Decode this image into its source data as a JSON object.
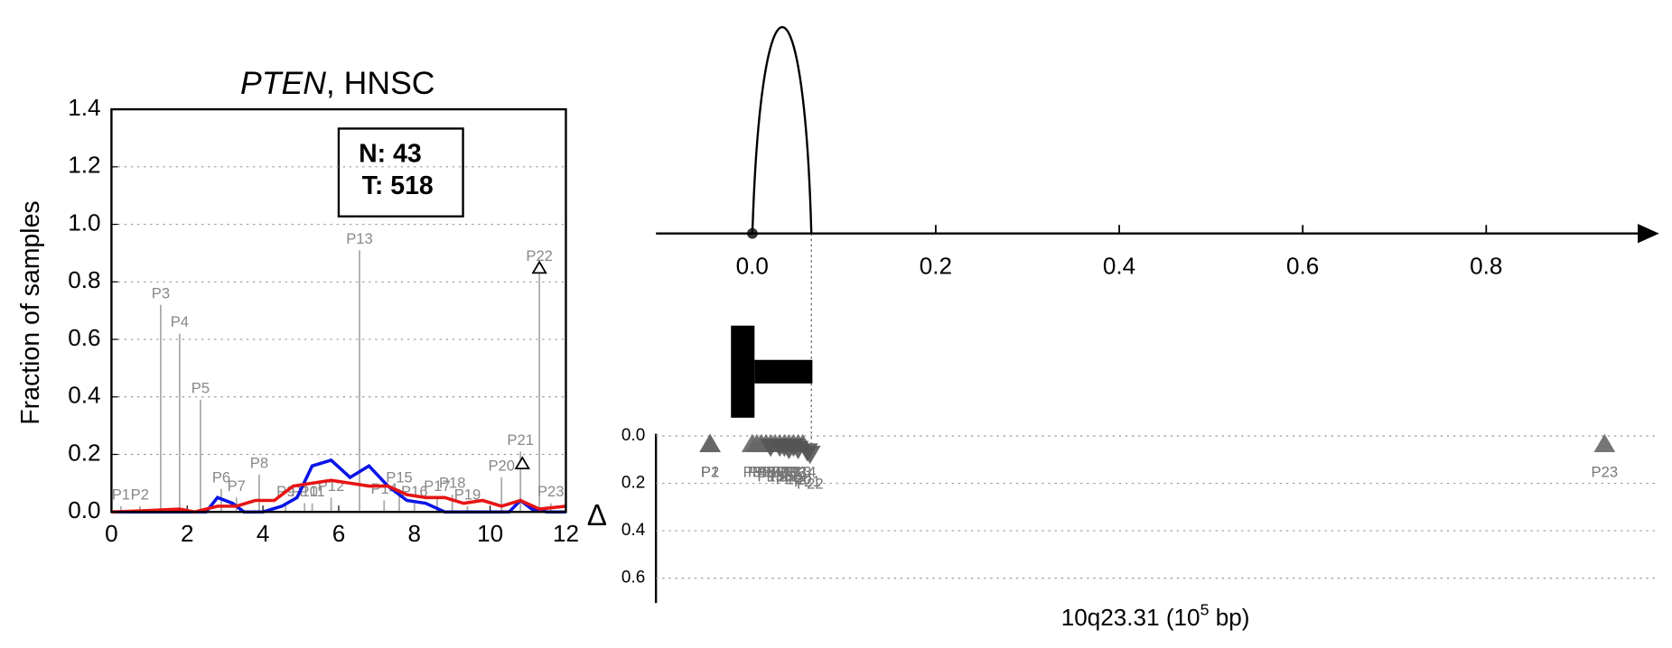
{
  "chart_data": [
    {
      "type": "line",
      "title": [
        "PTEN",
        ", HNSC"
      ],
      "ylabel": "Fraction of samples",
      "xlim": [
        0,
        12
      ],
      "ylim": [
        0,
        1.4
      ],
      "xticks": [
        0,
        2,
        4,
        6,
        8,
        10,
        12
      ],
      "yticks": [
        {
          "value": 0,
          "label": "0.0"
        },
        0.2,
        0.4,
        0.6,
        0.8,
        {
          "value": 1,
          "label": "1.0"
        },
        1.2,
        1.4
      ],
      "grid": true,
      "annotation": [
        "N: 43",
        "T: 518"
      ],
      "peaks": {
        "color": "#aaaaaa",
        "labels": [
          "P1",
          "P2",
          "P3",
          "P4",
          "P5",
          "P6",
          "P7",
          "P8",
          "P9",
          "P10",
          "P11",
          "P12",
          "P13",
          "P14",
          "P15",
          "P16",
          "P17",
          "P18",
          "P19",
          "P20",
          "P21",
          "P22",
          "P23"
        ],
        "x": [
          0.25,
          0.75,
          1.3,
          1.8,
          2.35,
          2.9,
          3.3,
          3.9,
          4.6,
          5.1,
          5.3,
          5.8,
          6.55,
          7.2,
          7.6,
          8.0,
          8.6,
          9.0,
          9.4,
          10.3,
          10.8,
          11.3,
          11.6
        ],
        "values": [
          0.02,
          0.02,
          0.72,
          0.62,
          0.39,
          0.08,
          0.05,
          0.13,
          0.03,
          0.03,
          0.03,
          0.05,
          0.91,
          0.04,
          0.08,
          0.03,
          0.05,
          0.06,
          0.02,
          0.12,
          0.21,
          0.85,
          0.03
        ]
      },
      "series": [
        {
          "color": "#0a14e6",
          "x": [
            0,
            1,
            2,
            2.5,
            2.8,
            3.2,
            3.5,
            4,
            4.5,
            4.9,
            5.3,
            5.8,
            6.3,
            6.8,
            7.3,
            7.8,
            8.3,
            8.8,
            9.5,
            10.5,
            10.8,
            11.1,
            11.5,
            12
          ],
          "values": [
            0,
            0,
            0,
            0,
            0.05,
            0.03,
            0,
            0,
            0.02,
            0.05,
            0.16,
            0.18,
            0.12,
            0.16,
            0.09,
            0.04,
            0.03,
            0,
            0,
            0,
            0.04,
            0.01,
            0,
            0
          ]
        },
        {
          "color": "#e61414",
          "x": [
            0,
            1,
            1.8,
            2.2,
            2.8,
            3.3,
            3.8,
            4.3,
            4.8,
            5.3,
            5.8,
            6.3,
            6.8,
            7.3,
            7.8,
            8.3,
            8.8,
            9.3,
            9.8,
            10.3,
            10.8,
            11.3,
            12
          ],
          "values": [
            0,
            0.005,
            0.01,
            0,
            0.02,
            0.02,
            0.04,
            0.04,
            0.09,
            0.1,
            0.11,
            0.1,
            0.09,
            0.09,
            0.06,
            0.05,
            0.05,
            0.03,
            0.04,
            0.02,
            0.04,
            0.01,
            0.02
          ]
        }
      ],
      "markers": {
        "x": [
          10.85,
          11.3
        ],
        "values": [
          0.17,
          0.85
        ]
      }
    },
    {
      "type": "axis",
      "xlim": [
        -0.105,
        0.985
      ],
      "xticks": [
        {
          "value": 0,
          "label": "0.0"
        },
        0.2,
        0.4,
        0.6,
        0.8
      ]
    },
    {
      "type": "scatter",
      "ylabel": "Δ",
      "xlabel": [
        "10q23.31 (10",
        "5",
        " bp)"
      ],
      "xlim": [
        -0.105,
        0.985
      ],
      "ylim": [
        0,
        0.7
      ],
      "yticks": [
        {
          "value": 0,
          "label": "0.0"
        },
        0.2,
        0.4,
        0.6
      ],
      "grid": true,
      "series": [
        {
          "marker": "up",
          "color": "#666666",
          "labels": [
            "P1",
            "P2",
            "P3",
            "P4",
            "P5",
            "P6",
            "P7",
            "P8",
            "P9",
            "P10",
            "P11",
            "P12",
            "P13",
            "P14",
            "P23"
          ],
          "x": [
            -0.046,
            -0.046,
            0.0,
            0.005,
            0.01,
            0.015,
            0.02,
            0.025,
            0.03,
            0.035,
            0.04,
            0.045,
            0.05,
            0.055,
            0.929
          ],
          "values": [
            0.03,
            0.03,
            0.03,
            0.03,
            0.03,
            0.03,
            0.03,
            0.03,
            0.03,
            0.03,
            0.03,
            0.03,
            0.03,
            0.03,
            0.03
          ]
        },
        {
          "marker": "down",
          "color": "#555555",
          "labels": [
            "P15",
            "P16",
            "P17",
            "P18",
            "P19",
            "P20",
            "P21",
            "P22"
          ],
          "x": [
            0.02,
            0.03,
            0.035,
            0.04,
            0.045,
            0.05,
            0.06,
            0.063
          ],
          "values": [
            0.05,
            0.05,
            0.05,
            0.06,
            0.05,
            0.06,
            0.07,
            0.08
          ]
        }
      ]
    }
  ]
}
